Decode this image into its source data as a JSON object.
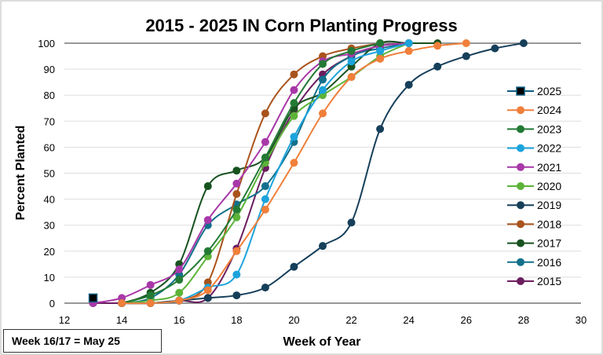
{
  "chart_data": {
    "type": "line",
    "title": "2015 - 2025 IN Corn Planting Progress",
    "xlabel": "Week of Year",
    "ylabel": "Percent Planted",
    "xlim": [
      12,
      30
    ],
    "ylim": [
      0,
      100
    ],
    "xticks": [
      12,
      14,
      16,
      18,
      20,
      22,
      24,
      26,
      28,
      30
    ],
    "yticks": [
      0,
      10,
      20,
      30,
      40,
      50,
      60,
      70,
      80,
      90,
      100
    ],
    "grid": "horizontal",
    "legend": "right",
    "series": [
      {
        "name": "2025",
        "color": "#0e5f80",
        "marker": "square",
        "x": [
          13
        ],
        "y": [
          2
        ]
      },
      {
        "name": "2024",
        "color": "#f07f3a",
        "x": [
          14,
          15,
          16,
          17,
          18,
          19,
          20,
          21,
          22,
          23,
          24,
          25,
          26
        ],
        "y": [
          0,
          0,
          1,
          5,
          20,
          36,
          54,
          73,
          87,
          94,
          97,
          99,
          100
        ]
      },
      {
        "name": "2023",
        "color": "#237a35",
        "x": [
          14,
          15,
          16,
          17,
          18,
          19,
          20,
          21,
          22,
          23
        ],
        "y": [
          0,
          3,
          9,
          20,
          36,
          56,
          77,
          92,
          97,
          100
        ]
      },
      {
        "name": "2022",
        "color": "#1ba3dc",
        "x": [
          14,
          15,
          16,
          17,
          18,
          19,
          20,
          21,
          22,
          23,
          24
        ],
        "y": [
          0,
          0,
          1,
          6,
          11,
          40,
          64,
          82,
          93,
          97,
          100
        ]
      },
      {
        "name": "2021",
        "color": "#a838a8",
        "x": [
          13,
          14,
          15,
          16,
          17,
          18,
          19,
          20,
          21,
          22,
          23,
          24
        ],
        "y": [
          0,
          2,
          7,
          13,
          32,
          46,
          62,
          82,
          93,
          96,
          99,
          100
        ]
      },
      {
        "name": "2020",
        "color": "#5cb338",
        "x": [
          14,
          15,
          16,
          17,
          18,
          19,
          20,
          21,
          22,
          23,
          24
        ],
        "y": [
          0,
          1,
          4,
          18,
          33,
          54,
          72,
          80,
          87,
          95,
          100
        ]
      },
      {
        "name": "2019",
        "color": "#163f5a",
        "x": [
          14,
          15,
          16,
          17,
          18,
          19,
          20,
          21,
          22,
          23,
          24,
          25,
          26,
          27,
          28
        ],
        "y": [
          0,
          0,
          1,
          2,
          3,
          6,
          14,
          22,
          31,
          67,
          84,
          91,
          95,
          98,
          100
        ]
      },
      {
        "name": "2018",
        "color": "#a9531c",
        "x": [
          14,
          15,
          16,
          17,
          18,
          19,
          20,
          21,
          22,
          23
        ],
        "y": [
          0,
          0,
          1,
          8,
          42,
          73,
          88,
          95,
          98,
          100
        ]
      },
      {
        "name": "2017",
        "color": "#17521f",
        "x": [
          14,
          15,
          16,
          17,
          18,
          19,
          20,
          21,
          22,
          23,
          24,
          25
        ],
        "y": [
          0,
          4,
          15,
          45,
          51,
          56,
          75,
          81,
          91,
          100,
          100,
          100
        ]
      },
      {
        "name": "2016",
        "color": "#13708c",
        "x": [
          14,
          15,
          16,
          17,
          18,
          19,
          20,
          21,
          22,
          23,
          24
        ],
        "y": [
          0,
          2,
          11,
          30,
          38,
          45,
          62,
          86,
          95,
          98,
          100
        ]
      },
      {
        "name": "2015",
        "color": "#6b1d5f",
        "x": [
          13,
          14,
          15,
          16,
          17,
          18,
          19,
          20,
          21,
          22,
          23,
          24
        ],
        "y": [
          0,
          0,
          0,
          1,
          2,
          21,
          52,
          74,
          88,
          95,
          99,
          100
        ]
      }
    ]
  },
  "note": "Week 16/17 = May 25"
}
